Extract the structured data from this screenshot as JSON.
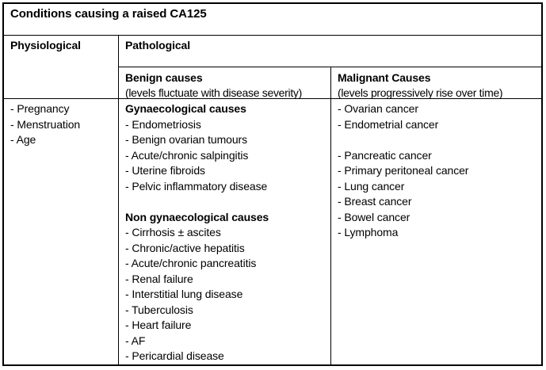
{
  "table": {
    "title": "Conditions causing a raised CA125",
    "physiological": {
      "header": "Physiological",
      "groups": [
        {
          "heading": "",
          "items": [
            "- Pregnancy",
            "- Menstruation",
            "- Age"
          ]
        }
      ]
    },
    "pathological": {
      "header": "Pathological",
      "benign": {
        "header": "Benign causes",
        "note": "(levels fluctuate with disease severity)",
        "groups": [
          {
            "heading": "Gynaecological causes",
            "items": [
              "- Endometriosis",
              "- Benign ovarian tumours",
              "- Acute/chronic salpingitis",
              "- Uterine fibroids",
              "- Pelvic inflammatory disease"
            ]
          },
          {
            "heading": "Non gynaecological causes",
            "items": [
              "- Cirrhosis ± ascites",
              "- Chronic/active hepatitis",
              "- Acute/chronic pancreatitis",
              "- Renal failure",
              "- Interstitial lung disease",
              "- Tuberculosis",
              "- Heart failure",
              "- AF",
              "- Pericardial disease"
            ]
          }
        ]
      },
      "malignant": {
        "header": "Malignant Causes",
        "note": "(levels progressively rise over time)",
        "groups": [
          {
            "heading": "",
            "items": [
              "- Ovarian cancer",
              "- Endometrial cancer"
            ]
          },
          {
            "heading": "",
            "items": [
              "- Pancreatic cancer",
              "- Primary peritoneal cancer",
              "- Lung cancer",
              "- Breast cancer",
              "- Bowel cancer",
              "- Lymphoma"
            ]
          }
        ]
      }
    }
  }
}
